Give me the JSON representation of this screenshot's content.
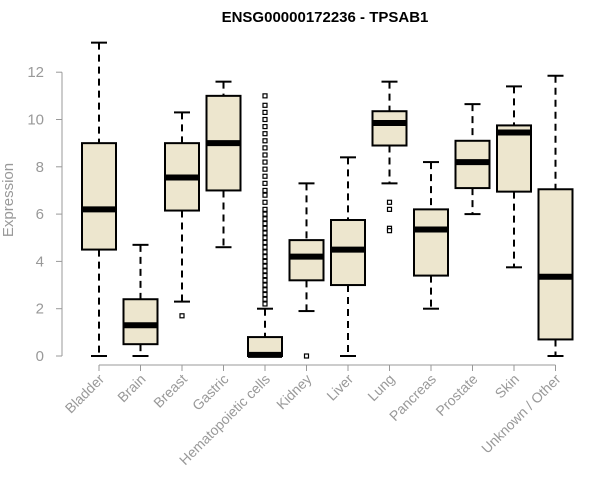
{
  "chart_data": {
    "type": "boxplot",
    "title": "ENSG00000172236 - TPSAB1",
    "xlabel": "",
    "ylabel": "Expression",
    "ylim": [
      0,
      13.5
    ],
    "yticks": [
      0,
      2,
      4,
      6,
      8,
      10,
      12
    ],
    "categories": [
      "Bladder",
      "Brain",
      "Breast",
      "Gastric",
      "Hematopoietic cells",
      "Kidney",
      "Liver",
      "Lung",
      "Pancreas",
      "Prostate",
      "Skin",
      "Unknown / Other"
    ],
    "boxes": [
      {
        "min": 0.0,
        "q1": 4.5,
        "median": 6.2,
        "q3": 9.0,
        "max": 13.25,
        "outliers": []
      },
      {
        "min": 0.0,
        "q1": 0.5,
        "median": 1.3,
        "q3": 2.4,
        "max": 4.7,
        "outliers": []
      },
      {
        "min": 2.3,
        "q1": 6.15,
        "median": 7.55,
        "q3": 9.0,
        "max": 10.3,
        "outliers": [
          1.7
        ]
      },
      {
        "min": 4.6,
        "q1": 7.0,
        "median": 9.0,
        "q3": 11.0,
        "max": 11.6,
        "outliers": []
      },
      {
        "min": 0.0,
        "q1": 0.0,
        "median": 0.05,
        "q3": 0.8,
        "max": 2.0,
        "outliers": [
          2.2,
          2.4,
          2.6,
          2.8,
          3.0,
          3.2,
          3.4,
          3.6,
          3.8,
          4.0,
          4.2,
          4.4,
          4.6,
          4.8,
          5.0,
          5.2,
          5.4,
          5.6,
          5.8,
          6.0,
          6.2,
          6.5,
          6.8,
          7.0,
          7.3,
          7.6,
          7.9,
          8.2,
          8.5,
          8.8,
          9.1,
          9.4,
          9.7,
          10.0,
          10.3,
          10.6,
          11.0
        ]
      },
      {
        "min": 1.9,
        "q1": 3.2,
        "median": 4.2,
        "q3": 4.9,
        "max": 7.3,
        "outliers": [
          0.0
        ]
      },
      {
        "min": 0.0,
        "q1": 3.0,
        "median": 4.5,
        "q3": 5.75,
        "max": 8.4,
        "outliers": []
      },
      {
        "min": 7.3,
        "q1": 8.9,
        "median": 9.85,
        "q3": 10.35,
        "max": 11.6,
        "outliers": [
          6.2,
          6.5,
          5.4,
          5.3
        ]
      },
      {
        "min": 2.0,
        "q1": 3.4,
        "median": 5.35,
        "q3": 6.2,
        "max": 8.2,
        "outliers": []
      },
      {
        "min": 6.0,
        "q1": 7.1,
        "median": 8.2,
        "q3": 9.1,
        "max": 10.65,
        "outliers": []
      },
      {
        "min": 3.75,
        "q1": 6.95,
        "median": 9.45,
        "q3": 9.75,
        "max": 11.4,
        "outliers": []
      },
      {
        "min": 0.0,
        "q1": 0.7,
        "median": 3.35,
        "q3": 7.05,
        "max": 11.85,
        "outliers": []
      }
    ],
    "colors": {
      "box_fill": "#ede6ce",
      "stroke": "#000000",
      "axis": "#999999"
    }
  }
}
